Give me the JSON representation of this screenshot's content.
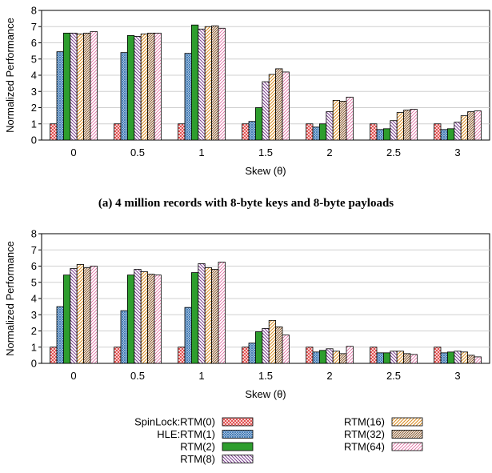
{
  "chart_data": [
    {
      "type": "bar",
      "caption": "(a) 4 million records with 8-byte keys and 8-byte payloads",
      "xlabel": "Skew (θ)",
      "ylabel": "Normalized Performance",
      "ylim": [
        0,
        8
      ],
      "yticks": [
        "0",
        "1",
        "2",
        "3",
        "4",
        "5",
        "6",
        "7",
        "8"
      ],
      "grid": true,
      "categories": [
        "0",
        "0.5",
        "1",
        "1.5",
        "2",
        "2.5",
        "3"
      ],
      "series": [
        {
          "name": "SpinLock:RTM(0)",
          "values": [
            1,
            1,
            1,
            1,
            1,
            1,
            1
          ]
        },
        {
          "name": "HLE:RTM(1)",
          "values": [
            5.45,
            5.4,
            5.35,
            1.15,
            0.8,
            0.65,
            0.65
          ]
        },
        {
          "name": "RTM(2)",
          "values": [
            6.6,
            6.45,
            7.1,
            2.0,
            1.0,
            0.7,
            0.7
          ]
        },
        {
          "name": "RTM(8)",
          "values": [
            6.6,
            6.4,
            6.85,
            3.6,
            1.75,
            1.2,
            1.1
          ]
        },
        {
          "name": "RTM(16)",
          "values": [
            6.55,
            6.55,
            7.0,
            4.05,
            2.45,
            1.7,
            1.5
          ]
        },
        {
          "name": "RTM(32)",
          "values": [
            6.6,
            6.6,
            7.05,
            4.4,
            2.4,
            1.85,
            1.75
          ]
        },
        {
          "name": "RTM(64)",
          "values": [
            6.7,
            6.6,
            6.9,
            4.2,
            2.65,
            1.9,
            1.8
          ]
        }
      ]
    },
    {
      "type": "bar",
      "caption": "",
      "xlabel": "Skew (θ)",
      "ylabel": "Normalized Performance",
      "ylim": [
        0,
        8
      ],
      "yticks": [
        "0",
        "1",
        "2",
        "3",
        "4",
        "5",
        "6",
        "7",
        "8"
      ],
      "grid": true,
      "categories": [
        "0",
        "0.5",
        "1",
        "1.5",
        "2",
        "2.5",
        "3"
      ],
      "series": [
        {
          "name": "SpinLock:RTM(0)",
          "values": [
            1,
            1,
            1,
            1,
            1,
            1,
            1
          ]
        },
        {
          "name": "HLE:RTM(1)",
          "values": [
            3.5,
            3.25,
            3.45,
            1.25,
            0.7,
            0.65,
            0.65
          ]
        },
        {
          "name": "RTM(2)",
          "values": [
            5.45,
            5.45,
            5.6,
            1.95,
            0.8,
            0.65,
            0.7
          ]
        },
        {
          "name": "RTM(8)",
          "values": [
            5.85,
            5.8,
            6.15,
            2.15,
            0.9,
            0.75,
            0.75
          ]
        },
        {
          "name": "RTM(16)",
          "values": [
            6.1,
            5.65,
            5.9,
            2.65,
            0.75,
            0.75,
            0.7
          ]
        },
        {
          "name": "RTM(32)",
          "values": [
            5.9,
            5.5,
            5.8,
            2.25,
            0.6,
            0.6,
            0.5
          ]
        },
        {
          "name": "RTM(64)",
          "values": [
            6.0,
            5.45,
            6.25,
            1.75,
            1.05,
            0.55,
            0.4
          ]
        }
      ]
    }
  ],
  "legend": {
    "entries": [
      "SpinLock:RTM(0)",
      "HLE:RTM(1)",
      "RTM(2)",
      "RTM(8)",
      "RTM(16)",
      "RTM(32)",
      "RTM(64)"
    ]
  },
  "colors": {
    "SpinLock:RTM(0)": "#e04848",
    "HLE:RTM(1)": "#3c78b4",
    "RTM(2)": "#2e9e2e",
    "RTM(8)": "#7a3e8e",
    "RTM(16)": "#d98a1e",
    "RTM(32)": "#8a5a2e",
    "RTM(64)": "#e06aa0"
  },
  "patterns": {
    "SpinLock:RTM(0)": "crosshatch",
    "HLE:RTM(1)": "crosshatch-dense",
    "RTM(2)": "solid",
    "RTM(8)": "diagonal-back",
    "RTM(16)": "diagonal-forward",
    "RTM(32)": "diagonal-forward-dense",
    "RTM(64)": "diagonal-forward-light"
  }
}
